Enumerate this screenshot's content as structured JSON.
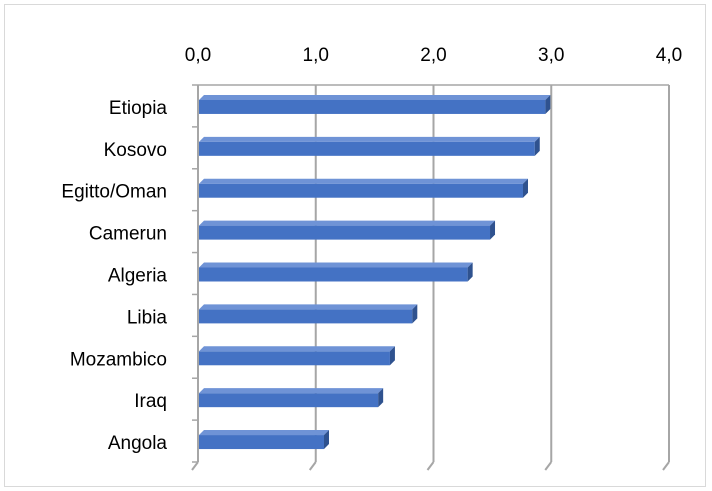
{
  "chart_data": {
    "type": "bar",
    "orientation": "horizontal",
    "style": "3d-clustered",
    "axis_position": "top",
    "categories": [
      "Etiopia",
      "Kosovo",
      "Egitto/Oman",
      "Camerun",
      "Algeria",
      "Libia",
      "Mozambico",
      "Iraq",
      "Angola"
    ],
    "values": [
      2.95,
      2.86,
      2.76,
      2.48,
      2.29,
      1.82,
      1.63,
      1.53,
      1.07
    ],
    "xlim": [
      0,
      4
    ],
    "ticks": [
      "0,0",
      "1,0",
      "2,0",
      "3,0",
      "4,0"
    ],
    "tick_values": [
      0,
      1,
      2,
      3,
      4
    ],
    "grid": true,
    "colors": {
      "bar_front": "#4472c4",
      "bar_top": "#6f93d6",
      "bar_side": "#2f528f",
      "gridline": "#a6a6a6",
      "frame": "#d9d9d9"
    }
  }
}
